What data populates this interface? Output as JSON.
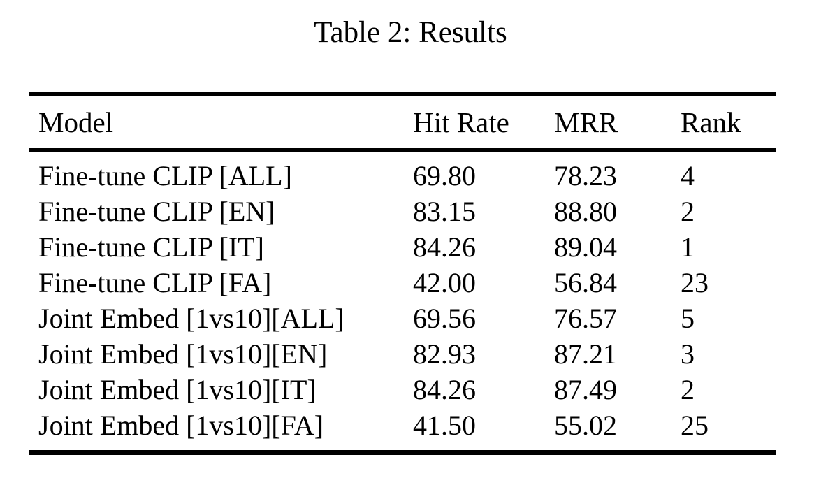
{
  "page": {
    "background_color": "#ffffff",
    "text_color": "#000000",
    "rule_color": "#000000"
  },
  "table": {
    "caption": "Table 2: Results",
    "columns": [
      "Model",
      "Hit Rate",
      "MRR",
      "Rank"
    ],
    "rows": [
      {
        "model": "Fine-tune CLIP [ALL]",
        "hit_rate": "69.80",
        "mrr": "78.23",
        "rank": "4"
      },
      {
        "model": "Fine-tune CLIP [EN]",
        "hit_rate": "83.15",
        "mrr": "88.80",
        "rank": "2"
      },
      {
        "model": "Fine-tune CLIP [IT]",
        "hit_rate": "84.26",
        "mrr": "89.04",
        "rank": "1"
      },
      {
        "model": "Fine-tune CLIP [FA]",
        "hit_rate": "42.00",
        "mrr": "56.84",
        "rank": "23"
      },
      {
        "model": "Joint Embed [1vs10][ALL]",
        "hit_rate": "69.56",
        "mrr": "76.57",
        "rank": "5"
      },
      {
        "model": "Joint Embed [1vs10][EN]",
        "hit_rate": "82.93",
        "mrr": "87.21",
        "rank": "3"
      },
      {
        "model": "Joint Embed [1vs10][IT]",
        "hit_rate": "84.26",
        "mrr": "87.49",
        "rank": "2"
      },
      {
        "model": "Joint Embed [1vs10][FA]",
        "hit_rate": "41.50",
        "mrr": "55.02",
        "rank": "25"
      }
    ]
  }
}
